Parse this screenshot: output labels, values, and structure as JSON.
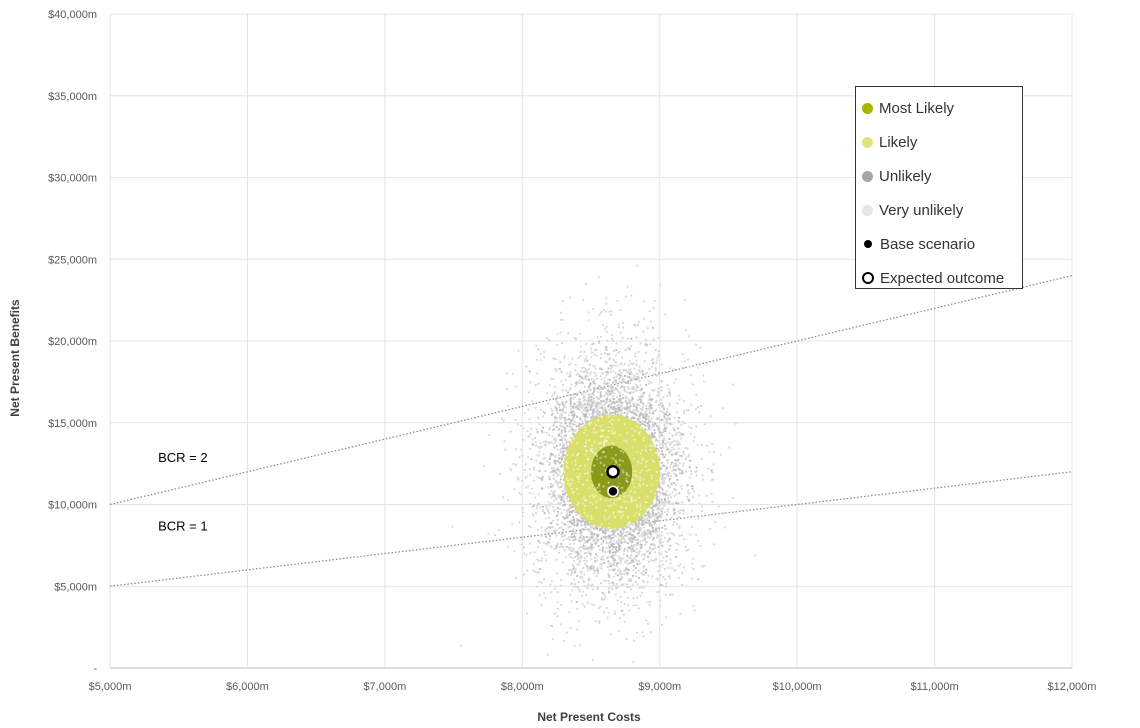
{
  "chart_data": {
    "type": "scatter",
    "title": "",
    "xlabel": "Net Present Costs",
    "ylabel": "Net Present Benefits",
    "xlim": [
      5000,
      12000
    ],
    "ylim": [
      0,
      40000
    ],
    "x_ticks": [
      5000,
      6000,
      7000,
      8000,
      9000,
      10000,
      11000,
      12000
    ],
    "x_tick_labels": [
      "$5,000m",
      "$6,000m",
      "$7,000m",
      "$8,000m",
      "$9,000m",
      "$10,000m",
      "$11,000m",
      "$12,000m"
    ],
    "y_ticks": [
      0,
      5000,
      10000,
      15000,
      20000,
      25000,
      30000,
      35000,
      40000
    ],
    "y_tick_labels": [
      "-",
      "$5,000m",
      "$10,000m",
      "$15,000m",
      "$20,000m",
      "$25,000m",
      "$30,000m",
      "$35,000m",
      "$40,000m"
    ],
    "grid": true,
    "legend_position": "top-right",
    "series": [
      {
        "name": "Very unlikely",
        "color": "#d9d9d9",
        "distribution": {
          "center_x": 8650,
          "center_y": 12000,
          "sd_x": 280,
          "sd_y": 3800,
          "approx_points": 4000
        }
      },
      {
        "name": "Unlikely",
        "color": "#bfbfbf",
        "distribution": {
          "center_x": 8650,
          "center_y": 12000,
          "sd_x": 200,
          "sd_y": 2500,
          "approx_points": 2500
        }
      },
      {
        "name": "Likely",
        "color": "#d9df6a",
        "region": {
          "center_x": 8650,
          "center_y": 12000,
          "radius_x": 350,
          "radius_y": 3500
        }
      },
      {
        "name": "Most Likely",
        "color": "#8a9a1c",
        "region": {
          "center_x": 8650,
          "center_y": 12000,
          "radius_x": 150,
          "radius_y": 1600
        }
      },
      {
        "name": "Base scenario",
        "color": "#000000",
        "points": [
          {
            "x": 8660,
            "y": 10800
          }
        ]
      },
      {
        "name": "Expected outcome",
        "color": "#000000",
        "marker": "hollow",
        "points": [
          {
            "x": 8660,
            "y": 12000
          }
        ]
      }
    ],
    "reference_lines": [
      {
        "label": "BCR = 2",
        "ratio": 2,
        "x_range": [
          5000,
          12000
        ]
      },
      {
        "label": "BCR = 1",
        "ratio": 1,
        "x_range": [
          5000,
          12000
        ]
      }
    ]
  },
  "legend": {
    "items": [
      {
        "label": "Most Likely",
        "color": "#a8b400",
        "icon": "filled-dot"
      },
      {
        "label": "Likely",
        "color": "#dde57a",
        "icon": "filled-dot"
      },
      {
        "label": "Unlikely",
        "color": "#a6a6a6",
        "icon": "filled-dot"
      },
      {
        "label": "Very unlikely",
        "color": "#e6e6e6",
        "icon": "filled-dot"
      },
      {
        "label": "Base scenario",
        "color": "#000000",
        "icon": "small-dot"
      },
      {
        "label": "Expected outcome",
        "color": "#000000",
        "icon": "hollow-circle"
      }
    ]
  }
}
